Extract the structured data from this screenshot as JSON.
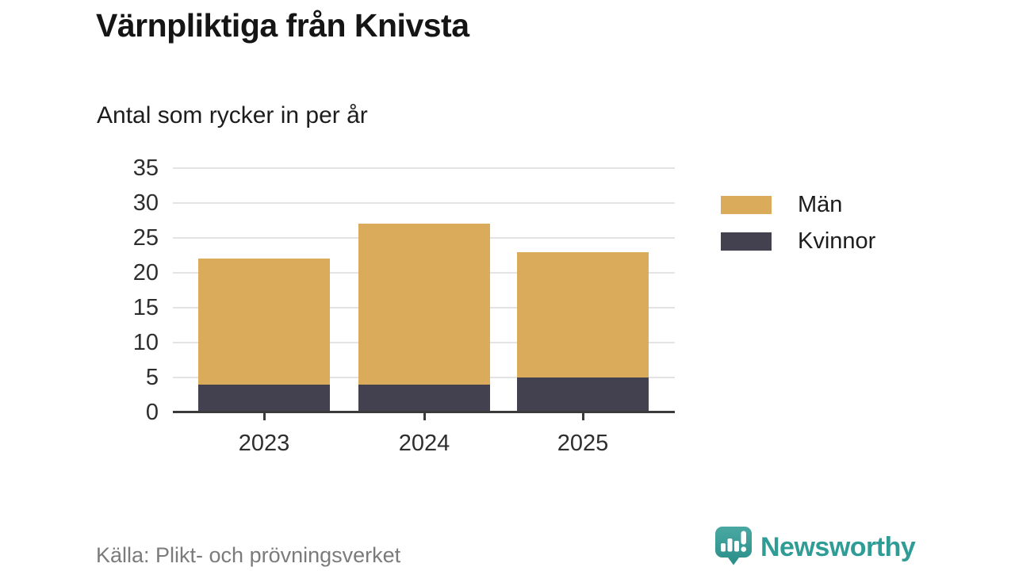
{
  "title": "Värnpliktiga från Knivsta",
  "subtitle": "Antal som rycker in per år",
  "source": "Källa: Plikt- och prövningsverket",
  "branding": {
    "name": "Newsworthy",
    "icon": "newsworthy-speech-bubble-bar-chart-icon",
    "text_color": "#2f9c96",
    "icon_color_top": "#4aa8a2",
    "icon_color_bottom": "#2a8d88"
  },
  "colors": {
    "men": "#d9ab5a",
    "women": "#434150",
    "gridline": "#e4e4e4",
    "axis": "#3a3a3a",
    "tick_text": "#2e2e2e",
    "source_text": "#7b7b7b"
  },
  "chart_data": {
    "type": "bar",
    "stacked": true,
    "title": "Värnpliktiga från Knivsta",
    "subtitle": "Antal som rycker in per år",
    "categories": [
      "2023",
      "2024",
      "2025"
    ],
    "series": [
      {
        "name": "Kvinnor",
        "color": "#434150",
        "values": [
          4,
          4,
          5
        ]
      },
      {
        "name": "Män",
        "color": "#d9ab5a",
        "values": [
          18,
          23,
          18
        ]
      }
    ],
    "totals": [
      22,
      27,
      23
    ],
    "ylim": [
      0,
      35
    ],
    "yticks": [
      0,
      5,
      10,
      15,
      20,
      25,
      30,
      35
    ],
    "grid": "horizontal",
    "legend_position": "right",
    "legend_items": [
      {
        "label": "Män",
        "color": "#d9ab5a"
      },
      {
        "label": "Kvinnor",
        "color": "#434150"
      }
    ]
  }
}
